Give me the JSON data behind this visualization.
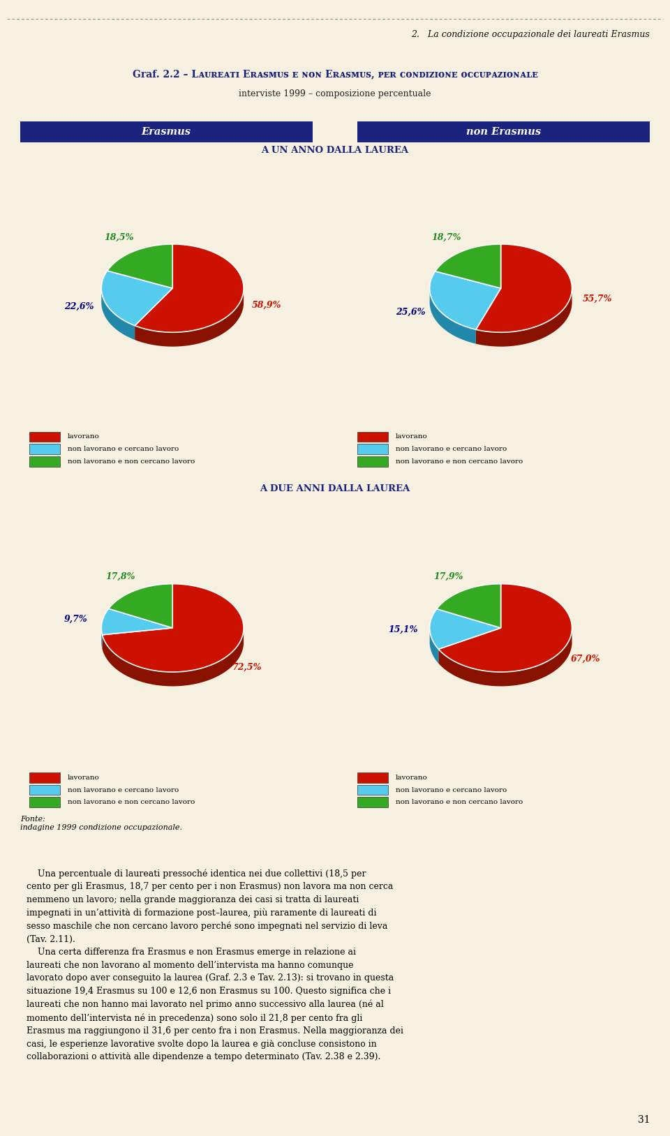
{
  "title_top": "2.   La condizione occupazionale dei laureati Erasmus",
  "subtitle": "interviste 1999 – composizione percentuale",
  "col_headers": [
    "Erasmus",
    "non Erasmus"
  ],
  "row_headers": [
    "A UN ANNO DALLA LAUREA",
    "A DUE ANNI DALLA LAUREA"
  ],
  "pies": [
    {
      "values": [
        58.9,
        22.6,
        18.5
      ],
      "label_texts": [
        "58,9%",
        "22,6%",
        "18,5%"
      ]
    },
    {
      "values": [
        55.7,
        25.6,
        18.7
      ],
      "label_texts": [
        "55,7%",
        "25,6%",
        "18,7%"
      ]
    },
    {
      "values": [
        72.5,
        9.7,
        17.8
      ],
      "label_texts": [
        "72,5%",
        "9,7%",
        "17,8%"
      ]
    },
    {
      "values": [
        67.0,
        15.1,
        17.9
      ],
      "label_texts": [
        "67,0%",
        "15,1%",
        "17,9%"
      ]
    }
  ],
  "legend_labels": [
    "lavorano",
    "non lavorano e cercano lavoro",
    "non lavorano e non cercano lavoro"
  ],
  "pie_colors": [
    "#cc1100",
    "#55ccee",
    "#33aa22"
  ],
  "pie_colors_dark": [
    "#881100",
    "#2288aa",
    "#226611"
  ],
  "label_colors": [
    "#cc1100",
    "#000088",
    "#228b22"
  ],
  "fonte_text": "Fonte:\nindagine 1999 condizione occupazionale.",
  "bg_color": "#f5f0e0",
  "chart_bg": "#f0ead8",
  "header_bg": "#1a237e",
  "page_number": "31",
  "body_paragraph1": "    Una percentuale di laureati pressoché identica nei due collettivi (18,5 per cento per gli Erasmus, 18,7 per cento per i non Erasmus) non lavora ma non cerca nemmeno un lavoro; nella grande maggioranza dei casi si tratta di laureati impegnati in un’attività di formazione post–laurea, più raramente di laureati di sesso maschile che non cercano lavoro perché sono impegnati nel servizio di leva (Tav. 2.11).",
  "body_paragraph2": "    Una certa differenza fra Erasmus e non Erasmus emerge in relazione ai laureati che non lavorano al momento dell’intervista ma hanno comunque lavorato dopo aver conseguito la laurea (Graf. 2.3 e Tav. 2.13): si trovano in questa situazione 19,4 Erasmus su 100 e 12,6 non Erasmus su 100. Questo significa che i laureati che non hanno mai lavorato nel primo anno successivo alla laurea (né al momento dell’intervista né in precedenza) sono solo il 21,8 per cento fra gli Erasmus ma raggiungono il 31,6 per cento fra i non Erasmus. Nella maggioranza dei casi, le esperienze lavorative svolte dopo la laurea e già concluse consistono in collaborazioni o attività alle dipendenze a tempo determinato (Tav. 2.38 e 2.39)."
}
